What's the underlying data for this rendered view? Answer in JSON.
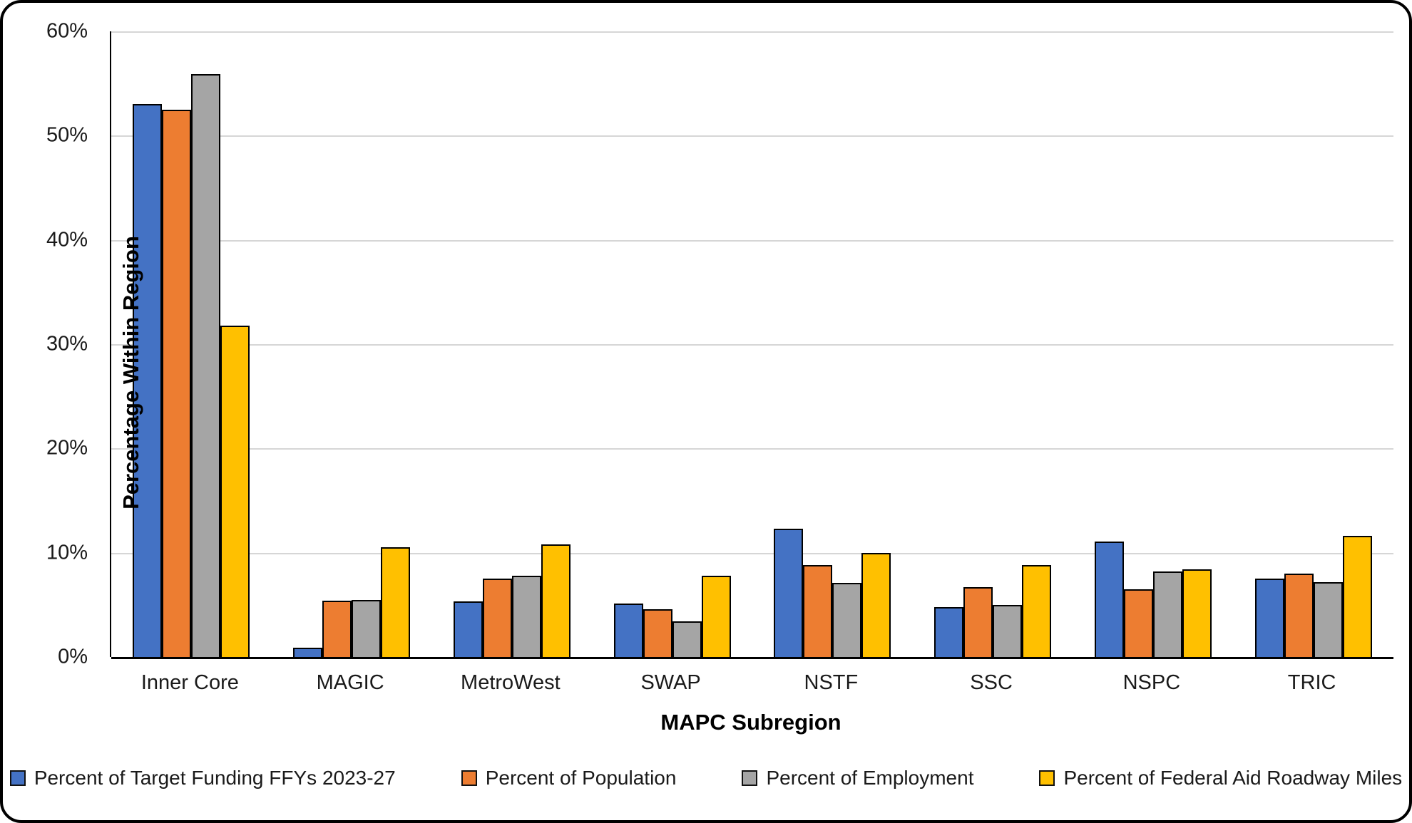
{
  "chart_data": {
    "type": "bar",
    "title": "",
    "xlabel": "MAPC Subregion",
    "ylabel": "Percentage Within Region",
    "ylim": [
      0,
      60
    ],
    "y_tick_step": 10,
    "y_tick_labels": [
      "0%",
      "10%",
      "20%",
      "30%",
      "40%",
      "50%",
      "60%"
    ],
    "grid": "horizontal",
    "legend_position": "bottom",
    "categories": [
      "Inner Core",
      "MAGIC",
      "MetroWest",
      "SWAP",
      "NSTF",
      "SSC",
      "NSPC",
      "TRIC"
    ],
    "series": [
      {
        "name": "Percent of Target Funding FFYs 2023-27",
        "color": "#4472C4",
        "values": [
          53.0,
          0.9,
          5.3,
          5.1,
          12.3,
          4.8,
          11.1,
          7.5
        ]
      },
      {
        "name": "Percent of Population",
        "color": "#ED7D31",
        "values": [
          52.5,
          5.4,
          7.5,
          4.6,
          8.8,
          6.7,
          6.5,
          8.0
        ]
      },
      {
        "name": "Percent of Employment",
        "color": "#A5A5A5",
        "values": [
          55.9,
          5.5,
          7.8,
          3.4,
          7.1,
          5.0,
          8.2,
          7.2
        ]
      },
      {
        "name": "Percent of Federal Aid Roadway Miles",
        "color": "#FFC000",
        "values": [
          31.8,
          10.5,
          10.8,
          7.8,
          10.0,
          8.8,
          8.4,
          11.6
        ]
      }
    ]
  }
}
